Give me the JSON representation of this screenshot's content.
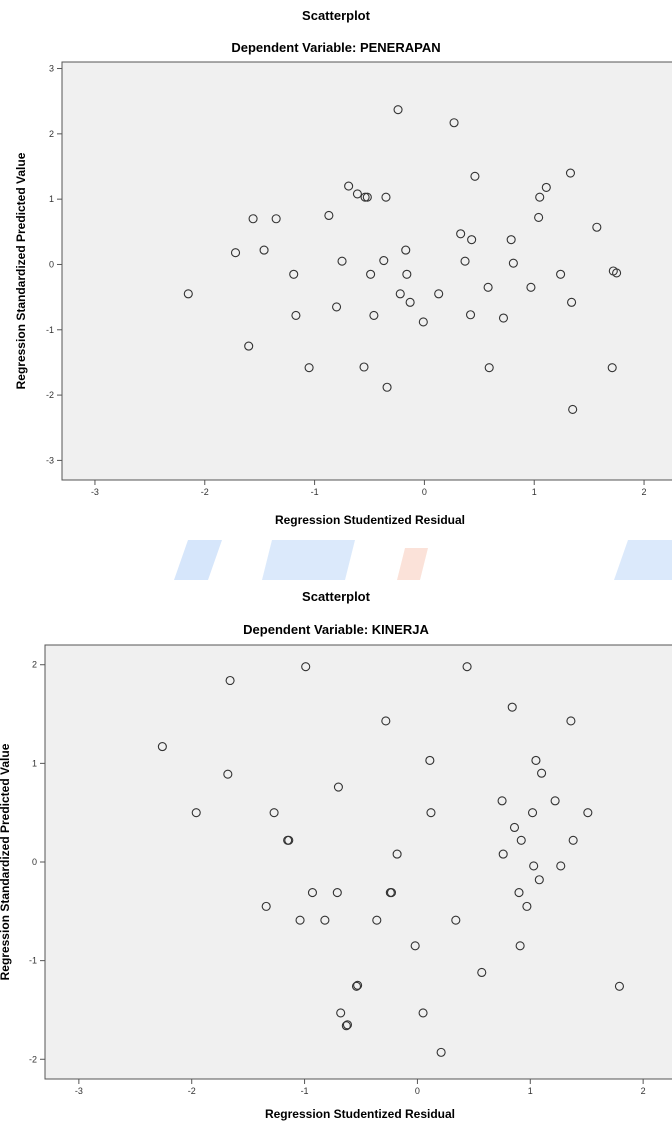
{
  "chart_data": [
    {
      "type": "scatter",
      "title": "Scatterplot",
      "subtitle": "Dependent Variable: PENERAPAN",
      "xlabel": "Regression Studentized Residual",
      "ylabel": "Regression Standardized Predicted Value",
      "xlim": [
        -3.3,
        2.3
      ],
      "ylim": [
        -3.3,
        3.1
      ],
      "xticks": [
        -3,
        -2,
        -1,
        0,
        1,
        2
      ],
      "yticks": [
        -3,
        -2,
        -1,
        0,
        1,
        2,
        3
      ],
      "grid": false,
      "points": [
        [
          -2.15,
          -0.45
        ],
        [
          -1.72,
          0.18
        ],
        [
          -1.6,
          -1.25
        ],
        [
          -1.56,
          0.7
        ],
        [
          -1.46,
          0.22
        ],
        [
          -1.35,
          0.7
        ],
        [
          -1.19,
          -0.15
        ],
        [
          -1.17,
          -0.78
        ],
        [
          -1.05,
          -1.58
        ],
        [
          -0.87,
          0.75
        ],
        [
          -0.8,
          -0.65
        ],
        [
          -0.75,
          0.05
        ],
        [
          -0.69,
          1.2
        ],
        [
          -0.61,
          1.08
        ],
        [
          -0.55,
          -1.57
        ],
        [
          -0.54,
          1.03
        ],
        [
          -0.52,
          1.03
        ],
        [
          -0.49,
          -0.15
        ],
        [
          -0.46,
          -0.78
        ],
        [
          -0.37,
          0.06
        ],
        [
          -0.35,
          1.03
        ],
        [
          -0.34,
          -1.88
        ],
        [
          -0.24,
          2.37
        ],
        [
          -0.22,
          -0.45
        ],
        [
          -0.17,
          0.22
        ],
        [
          -0.16,
          -0.15
        ],
        [
          -0.13,
          -0.58
        ],
        [
          -0.01,
          -0.88
        ],
        [
          0.13,
          -0.45
        ],
        [
          0.27,
          2.17
        ],
        [
          0.33,
          0.47
        ],
        [
          0.37,
          0.05
        ],
        [
          0.42,
          -0.77
        ],
        [
          0.43,
          0.38
        ],
        [
          0.46,
          1.35
        ],
        [
          0.58,
          -0.35
        ],
        [
          0.59,
          -1.58
        ],
        [
          0.72,
          -0.82
        ],
        [
          0.79,
          0.38
        ],
        [
          0.81,
          0.02
        ],
        [
          0.97,
          -0.35
        ],
        [
          1.04,
          0.72
        ],
        [
          1.05,
          1.03
        ],
        [
          1.11,
          1.18
        ],
        [
          1.24,
          -0.15
        ],
        [
          1.33,
          1.4
        ],
        [
          1.34,
          -0.58
        ],
        [
          1.35,
          -2.22
        ],
        [
          1.57,
          0.57
        ],
        [
          1.71,
          -1.58
        ],
        [
          1.72,
          -0.1
        ],
        [
          1.75,
          -0.13
        ]
      ]
    },
    {
      "type": "scatter",
      "title": "Scatterplot",
      "subtitle": "Dependent Variable: KINERJA",
      "xlabel": "Regression Studentized Residual",
      "ylabel": "Regression Standardized Predicted Value",
      "xlim": [
        -3.3,
        2.3
      ],
      "ylim": [
        -2.2,
        2.2
      ],
      "xticks": [
        -3,
        -2,
        -1,
        0,
        1,
        2
      ],
      "yticks": [
        -2,
        -1,
        0,
        1,
        2
      ],
      "grid": false,
      "points": [
        [
          -2.26,
          1.17
        ],
        [
          -1.96,
          0.5
        ],
        [
          -1.66,
          1.84
        ],
        [
          -1.68,
          0.89
        ],
        [
          -1.34,
          -0.45
        ],
        [
          -1.27,
          0.5
        ],
        [
          -1.15,
          0.22
        ],
        [
          -1.14,
          0.22
        ],
        [
          -1.04,
          -0.59
        ],
        [
          -0.99,
          1.98
        ],
        [
          -0.93,
          -0.31
        ],
        [
          -0.82,
          -0.59
        ],
        [
          -0.71,
          -0.31
        ],
        [
          -0.7,
          0.76
        ],
        [
          -0.68,
          -1.53
        ],
        [
          -0.63,
          -1.66
        ],
        [
          -0.62,
          -1.65
        ],
        [
          -0.54,
          -1.26
        ],
        [
          -0.53,
          -1.25
        ],
        [
          -0.36,
          -0.59
        ],
        [
          -0.28,
          1.43
        ],
        [
          -0.24,
          -0.31
        ],
        [
          -0.23,
          -0.31
        ],
        [
          -0.18,
          0.08
        ],
        [
          -0.02,
          -0.85
        ],
        [
          0.05,
          -1.53
        ],
        [
          0.11,
          1.03
        ],
        [
          0.12,
          0.5
        ],
        [
          0.21,
          -1.93
        ],
        [
          0.34,
          -0.59
        ],
        [
          0.44,
          1.98
        ],
        [
          0.57,
          -1.12
        ],
        [
          0.75,
          0.62
        ],
        [
          0.76,
          0.08
        ],
        [
          0.84,
          1.57
        ],
        [
          0.86,
          0.35
        ],
        [
          0.9,
          -0.31
        ],
        [
          0.91,
          -0.85
        ],
        [
          0.92,
          0.22
        ],
        [
          0.97,
          -0.45
        ],
        [
          1.02,
          0.5
        ],
        [
          1.03,
          -0.04
        ],
        [
          1.05,
          1.03
        ],
        [
          1.08,
          -0.18
        ],
        [
          1.1,
          0.9
        ],
        [
          1.22,
          0.62
        ],
        [
          1.27,
          -0.04
        ],
        [
          1.36,
          1.43
        ],
        [
          1.38,
          0.22
        ],
        [
          1.51,
          0.5
        ],
        [
          1.79,
          -1.26
        ]
      ]
    }
  ]
}
